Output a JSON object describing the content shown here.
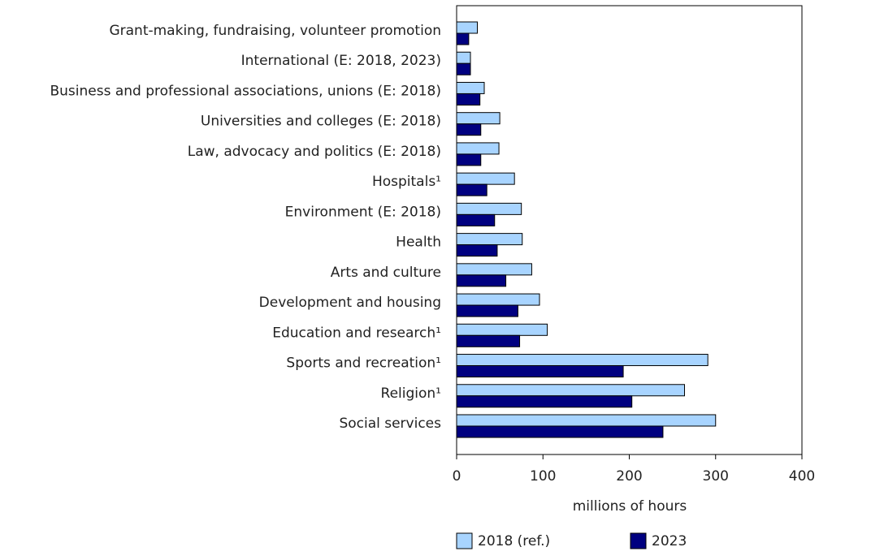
{
  "chart_data": {
    "type": "bar",
    "orientation": "horizontal",
    "x_label": "millions of hours",
    "categories": [
      "Grant-making, fundraising, volunteer promotion",
      "International (E: 2018, 2023)",
      "Business and professional associations, unions (E: 2018)",
      "Universities and colleges (E: 2018)",
      "Law, advocacy and politics (E: 2018)",
      "Hospitals¹",
      "Environment (E: 2018)",
      "Health",
      "Arts and culture",
      "Development and housing",
      "Education and research¹",
      "Sports and recreation¹",
      "Religion¹",
      "Social services"
    ],
    "series": [
      {
        "name": "2018 (ref.)",
        "color": "#a8d4ff",
        "values": [
          24,
          16,
          32,
          50,
          49,
          67,
          75,
          76,
          87,
          96,
          105,
          291,
          264,
          300
        ]
      },
      {
        "name": "2023",
        "color": "#000080",
        "values": [
          14,
          16,
          27,
          28,
          28,
          35,
          44,
          47,
          57,
          71,
          73,
          193,
          203,
          239
        ]
      }
    ],
    "xlim": [
      0,
      400
    ],
    "xticks": [
      0,
      100,
      200,
      300,
      400
    ]
  }
}
